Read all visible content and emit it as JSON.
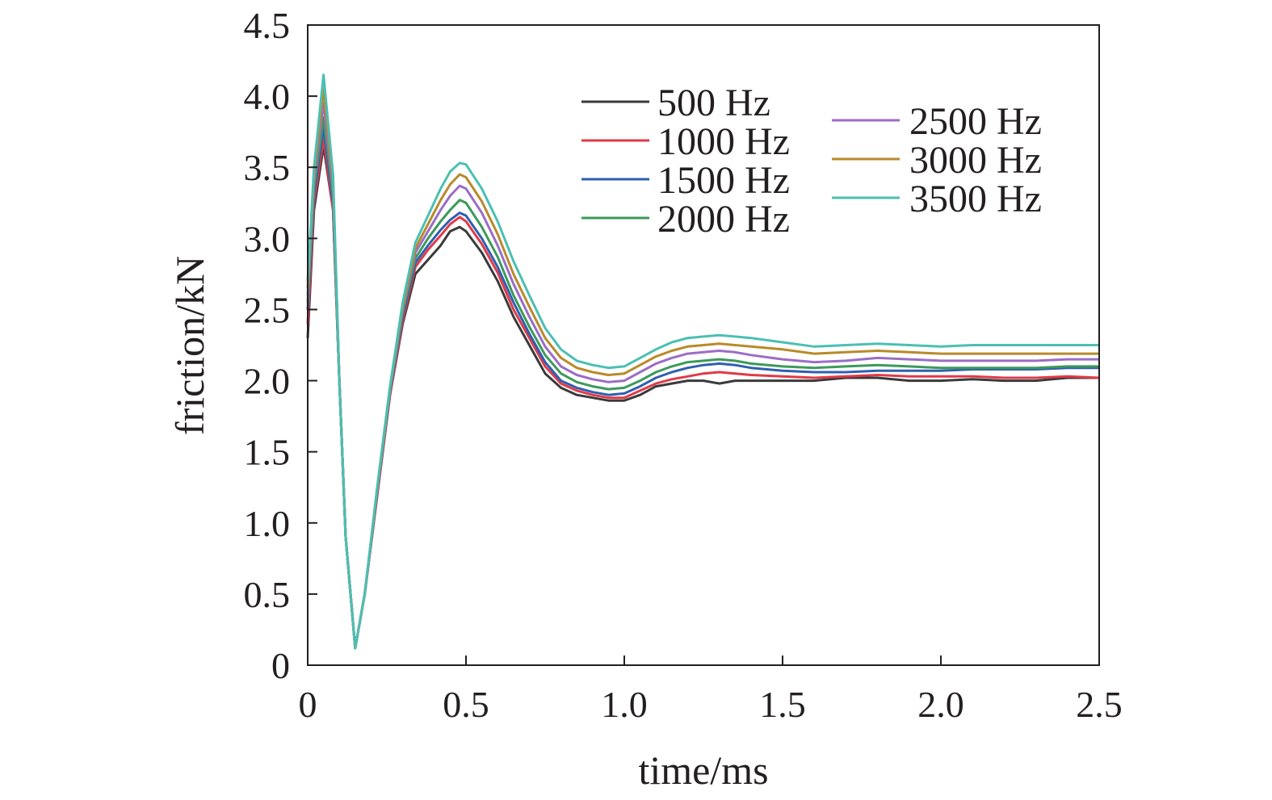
{
  "chart_data": {
    "type": "line",
    "xlabel": "time/ms",
    "ylabel": "friction/kN",
    "xlim": [
      0,
      2.5
    ],
    "ylim": [
      0,
      4.5
    ],
    "xticks": [
      0,
      0.5,
      1.0,
      1.5,
      2.0,
      2.5
    ],
    "xtick_labels": [
      "0",
      "0.5",
      "1.0",
      "1.5",
      "2.0",
      "2.5"
    ],
    "yticks": [
      0,
      0.5,
      1.0,
      1.5,
      2.0,
      2.5,
      3.0,
      3.5,
      4.0,
      4.5
    ],
    "ytick_labels": [
      "0",
      "0.5",
      "1.0",
      "1.5",
      "2.0",
      "2.5",
      "3.0",
      "3.5",
      "4.0",
      "4.5"
    ],
    "grid": false,
    "legend_position": "top-right",
    "series": [
      {
        "name": "500 Hz",
        "color": "#3a3a3a",
        "x": [
          0,
          0.02,
          0.05,
          0.08,
          0.1,
          0.12,
          0.15,
          0.18,
          0.22,
          0.26,
          0.3,
          0.34,
          0.38,
          0.42,
          0.45,
          0.48,
          0.5,
          0.55,
          0.6,
          0.65,
          0.7,
          0.75,
          0.8,
          0.85,
          0.9,
          0.95,
          1.0,
          1.05,
          1.1,
          1.15,
          1.2,
          1.25,
          1.3,
          1.35,
          1.4,
          1.5,
          1.6,
          1.7,
          1.8,
          1.9,
          2.0,
          2.1,
          2.2,
          2.3,
          2.4,
          2.5
        ],
        "y": [
          2.3,
          3.2,
          3.65,
          3.2,
          2.0,
          0.9,
          0.12,
          0.5,
          1.2,
          1.9,
          2.4,
          2.75,
          2.85,
          2.95,
          3.05,
          3.08,
          3.05,
          2.9,
          2.7,
          2.45,
          2.25,
          2.05,
          1.95,
          1.9,
          1.88,
          1.86,
          1.86,
          1.9,
          1.96,
          1.98,
          2.0,
          2.0,
          1.98,
          2.0,
          2.0,
          2.0,
          2.0,
          2.02,
          2.02,
          2.0,
          2.0,
          2.01,
          2.0,
          2.0,
          2.02,
          2.02
        ]
      },
      {
        "name": "1000 Hz",
        "color": "#e03a48",
        "x": [
          0,
          0.02,
          0.05,
          0.08,
          0.1,
          0.12,
          0.15,
          0.18,
          0.22,
          0.26,
          0.3,
          0.34,
          0.38,
          0.42,
          0.45,
          0.48,
          0.5,
          0.55,
          0.6,
          0.65,
          0.7,
          0.75,
          0.8,
          0.85,
          0.9,
          0.95,
          1.0,
          1.05,
          1.1,
          1.15,
          1.2,
          1.25,
          1.3,
          1.35,
          1.4,
          1.5,
          1.6,
          1.7,
          1.8,
          1.9,
          2.0,
          2.1,
          2.2,
          2.3,
          2.4,
          2.5
        ],
        "y": [
          2.4,
          3.25,
          3.7,
          3.2,
          2.0,
          0.9,
          0.12,
          0.5,
          1.2,
          1.9,
          2.42,
          2.8,
          2.92,
          3.02,
          3.1,
          3.15,
          3.12,
          2.96,
          2.76,
          2.5,
          2.3,
          2.1,
          1.98,
          1.93,
          1.9,
          1.88,
          1.88,
          1.93,
          1.98,
          2.01,
          2.03,
          2.05,
          2.06,
          2.05,
          2.04,
          2.03,
          2.02,
          2.03,
          2.04,
          2.03,
          2.03,
          2.03,
          2.02,
          2.02,
          2.03,
          2.02
        ]
      },
      {
        "name": "1500 Hz",
        "color": "#2f5fb0",
        "x": [
          0,
          0.02,
          0.05,
          0.08,
          0.1,
          0.12,
          0.15,
          0.18,
          0.22,
          0.26,
          0.3,
          0.34,
          0.38,
          0.42,
          0.45,
          0.48,
          0.5,
          0.55,
          0.6,
          0.65,
          0.7,
          0.75,
          0.8,
          0.85,
          0.9,
          0.95,
          1.0,
          1.05,
          1.1,
          1.15,
          1.2,
          1.25,
          1.3,
          1.35,
          1.4,
          1.5,
          1.6,
          1.7,
          1.8,
          1.9,
          2.0,
          2.1,
          2.2,
          2.3,
          2.4,
          2.5
        ],
        "y": [
          2.5,
          3.3,
          3.78,
          3.25,
          2.0,
          0.9,
          0.12,
          0.5,
          1.22,
          1.92,
          2.45,
          2.83,
          2.95,
          3.06,
          3.13,
          3.18,
          3.16,
          3.0,
          2.8,
          2.55,
          2.33,
          2.13,
          2.0,
          1.95,
          1.92,
          1.9,
          1.91,
          1.96,
          2.02,
          2.06,
          2.09,
          2.11,
          2.12,
          2.11,
          2.09,
          2.07,
          2.06,
          2.06,
          2.07,
          2.07,
          2.07,
          2.08,
          2.08,
          2.08,
          2.09,
          2.09
        ]
      },
      {
        "name": "2000 Hz",
        "color": "#3d9a5a",
        "x": [
          0,
          0.02,
          0.05,
          0.08,
          0.1,
          0.12,
          0.15,
          0.18,
          0.22,
          0.26,
          0.3,
          0.34,
          0.38,
          0.42,
          0.45,
          0.48,
          0.5,
          0.55,
          0.6,
          0.65,
          0.7,
          0.75,
          0.8,
          0.85,
          0.9,
          0.95,
          1.0,
          1.05,
          1.1,
          1.15,
          1.2,
          1.25,
          1.3,
          1.35,
          1.4,
          1.5,
          1.6,
          1.7,
          1.8,
          1.9,
          2.0,
          2.1,
          2.2,
          2.3,
          2.4,
          2.5
        ],
        "y": [
          2.55,
          3.35,
          3.85,
          3.3,
          2.0,
          0.9,
          0.12,
          0.5,
          1.23,
          1.93,
          2.48,
          2.86,
          3.0,
          3.12,
          3.2,
          3.27,
          3.25,
          3.08,
          2.87,
          2.6,
          2.38,
          2.18,
          2.05,
          1.99,
          1.96,
          1.94,
          1.95,
          2.0,
          2.06,
          2.1,
          2.13,
          2.14,
          2.15,
          2.14,
          2.12,
          2.1,
          2.09,
          2.1,
          2.11,
          2.1,
          2.09,
          2.09,
          2.09,
          2.09,
          2.1,
          2.1
        ]
      },
      {
        "name": "2500 Hz",
        "color": "#9b6dc6",
        "x": [
          0,
          0.02,
          0.05,
          0.08,
          0.1,
          0.12,
          0.15,
          0.18,
          0.22,
          0.26,
          0.3,
          0.34,
          0.38,
          0.42,
          0.45,
          0.48,
          0.5,
          0.55,
          0.6,
          0.65,
          0.7,
          0.75,
          0.8,
          0.85,
          0.9,
          0.95,
          1.0,
          1.05,
          1.1,
          1.15,
          1.2,
          1.25,
          1.3,
          1.35,
          1.4,
          1.5,
          1.6,
          1.7,
          1.8,
          1.9,
          2.0,
          2.1,
          2.2,
          2.3,
          2.4,
          2.5
        ],
        "y": [
          2.6,
          3.4,
          3.95,
          3.35,
          2.0,
          0.9,
          0.12,
          0.5,
          1.24,
          1.94,
          2.5,
          2.9,
          3.05,
          3.2,
          3.3,
          3.37,
          3.35,
          3.18,
          2.95,
          2.68,
          2.45,
          2.24,
          2.1,
          2.04,
          2.01,
          1.99,
          2.0,
          2.06,
          2.12,
          2.16,
          2.19,
          2.2,
          2.21,
          2.2,
          2.18,
          2.15,
          2.13,
          2.14,
          2.16,
          2.15,
          2.14,
          2.14,
          2.14,
          2.14,
          2.15,
          2.15
        ]
      },
      {
        "name": "3000 Hz",
        "color": "#b88a2a",
        "x": [
          0,
          0.02,
          0.05,
          0.08,
          0.1,
          0.12,
          0.15,
          0.18,
          0.22,
          0.26,
          0.3,
          0.34,
          0.38,
          0.42,
          0.45,
          0.48,
          0.5,
          0.55,
          0.6,
          0.65,
          0.7,
          0.75,
          0.8,
          0.85,
          0.9,
          0.95,
          1.0,
          1.05,
          1.1,
          1.15,
          1.2,
          1.25,
          1.3,
          1.35,
          1.4,
          1.5,
          1.6,
          1.7,
          1.8,
          1.9,
          2.0,
          2.1,
          2.2,
          2.3,
          2.4,
          2.5
        ],
        "y": [
          2.65,
          3.45,
          4.05,
          3.4,
          2.0,
          0.9,
          0.12,
          0.5,
          1.25,
          1.95,
          2.52,
          2.93,
          3.1,
          3.27,
          3.38,
          3.45,
          3.43,
          3.26,
          3.03,
          2.75,
          2.52,
          2.3,
          2.16,
          2.09,
          2.06,
          2.04,
          2.05,
          2.11,
          2.17,
          2.21,
          2.24,
          2.25,
          2.26,
          2.25,
          2.24,
          2.22,
          2.19,
          2.2,
          2.21,
          2.2,
          2.19,
          2.19,
          2.19,
          2.19,
          2.19,
          2.19
        ]
      },
      {
        "name": "3500 Hz",
        "color": "#4bbfb3",
        "x": [
          0,
          0.02,
          0.05,
          0.08,
          0.1,
          0.12,
          0.15,
          0.18,
          0.22,
          0.26,
          0.3,
          0.34,
          0.38,
          0.42,
          0.45,
          0.48,
          0.5,
          0.55,
          0.6,
          0.65,
          0.7,
          0.75,
          0.8,
          0.85,
          0.9,
          0.95,
          1.0,
          1.05,
          1.1,
          1.15,
          1.2,
          1.25,
          1.3,
          1.35,
          1.4,
          1.5,
          1.6,
          1.7,
          1.8,
          1.9,
          2.0,
          2.1,
          2.2,
          2.3,
          2.4,
          2.5
        ],
        "y": [
          2.7,
          3.5,
          4.15,
          3.45,
          2.0,
          0.9,
          0.12,
          0.5,
          1.26,
          1.96,
          2.55,
          2.97,
          3.16,
          3.35,
          3.47,
          3.53,
          3.52,
          3.35,
          3.12,
          2.84,
          2.6,
          2.37,
          2.22,
          2.14,
          2.11,
          2.09,
          2.1,
          2.16,
          2.22,
          2.27,
          2.3,
          2.31,
          2.32,
          2.31,
          2.3,
          2.27,
          2.24,
          2.25,
          2.26,
          2.25,
          2.24,
          2.25,
          2.25,
          2.25,
          2.25,
          2.25
        ]
      }
    ]
  }
}
